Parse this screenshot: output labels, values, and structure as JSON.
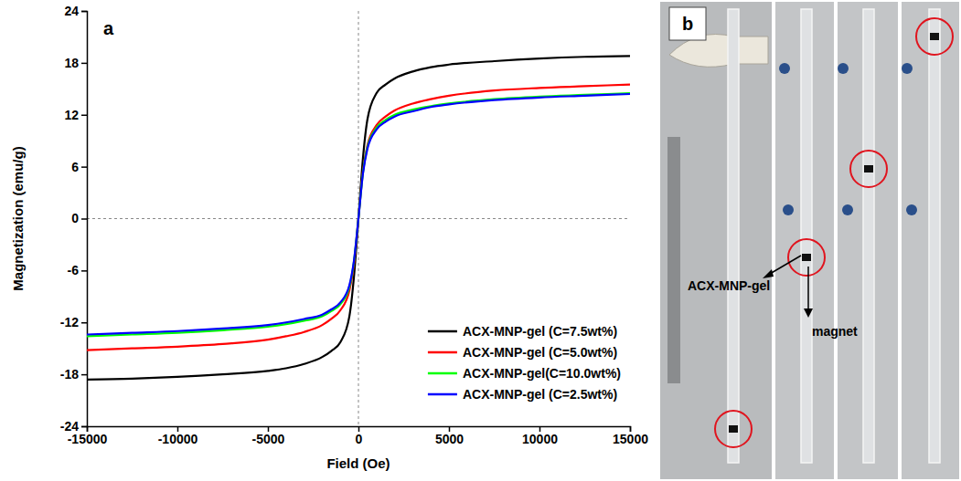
{
  "chart_data": {
    "type": "line",
    "annotations": [
      "a"
    ],
    "xlabel": "Field (Oe)",
    "ylabel": "Magnetization (emu/g)",
    "x": [
      -15000,
      -12500,
      -10000,
      -7500,
      -5000,
      -4000,
      -3000,
      -2000,
      -1500,
      -1000,
      -500,
      -250,
      0,
      250,
      500,
      1000,
      1500,
      2000,
      3000,
      4000,
      5000,
      7500,
      10000,
      12500,
      15000
    ],
    "xlim": [
      -15000,
      15000
    ],
    "xticks": [
      -15000,
      -10000,
      -5000,
      0,
      5000,
      10000,
      15000
    ],
    "ylim": [
      -24,
      24
    ],
    "yticks": [
      -24,
      -18,
      -12,
      -6,
      0,
      6,
      12,
      18,
      24
    ],
    "grid": false,
    "legend": "lower right",
    "series": [
      {
        "name": "ACX-MNP-gel (C=7.5wt%)",
        "color": "#000000",
        "values": [
          -18.6,
          -18.5,
          -18.3,
          -18.0,
          -17.6,
          -17.3,
          -16.8,
          -16.0,
          -15.3,
          -14.3,
          -11.3,
          -6.8,
          0,
          7.0,
          11.5,
          14.5,
          15.5,
          16.2,
          17.0,
          17.5,
          17.8,
          18.2,
          18.5,
          18.7,
          18.8
        ]
      },
      {
        "name": "ACX-MNP-gel (C=5.0wt%)",
        "color": "#ff0000",
        "values": [
          -15.2,
          -15.0,
          -14.8,
          -14.5,
          -14.0,
          -13.6,
          -13.1,
          -12.3,
          -11.6,
          -10.6,
          -8.3,
          -5.3,
          0,
          5.5,
          8.5,
          10.8,
          11.8,
          12.5,
          13.3,
          13.8,
          14.2,
          14.8,
          15.1,
          15.3,
          15.5
        ]
      },
      {
        "name": "ACX-MNP-gel(C=10.0wt%)",
        "color": "#00ff00",
        "values": [
          -13.6,
          -13.4,
          -13.2,
          -12.9,
          -12.5,
          -12.2,
          -11.8,
          -11.3,
          -10.7,
          -9.9,
          -7.9,
          -5.0,
          0,
          5.3,
          8.3,
          10.5,
          11.4,
          12.0,
          12.6,
          13.0,
          13.3,
          13.8,
          14.1,
          14.3,
          14.5
        ]
      },
      {
        "name": "ACX-MNP-gel (C=2.5wt%)",
        "color": "#0000ff",
        "values": [
          -13.4,
          -13.2,
          -13.0,
          -12.7,
          -12.3,
          -12.0,
          -11.6,
          -11.1,
          -10.5,
          -9.7,
          -7.7,
          -4.9,
          0,
          5.2,
          8.1,
          10.3,
          11.2,
          11.8,
          12.4,
          12.9,
          13.2,
          13.7,
          14.0,
          14.2,
          14.4
        ]
      }
    ]
  },
  "panel_b": {
    "label": "b",
    "annotations": [
      "ACX-MNP-gel",
      "magnet"
    ]
  }
}
